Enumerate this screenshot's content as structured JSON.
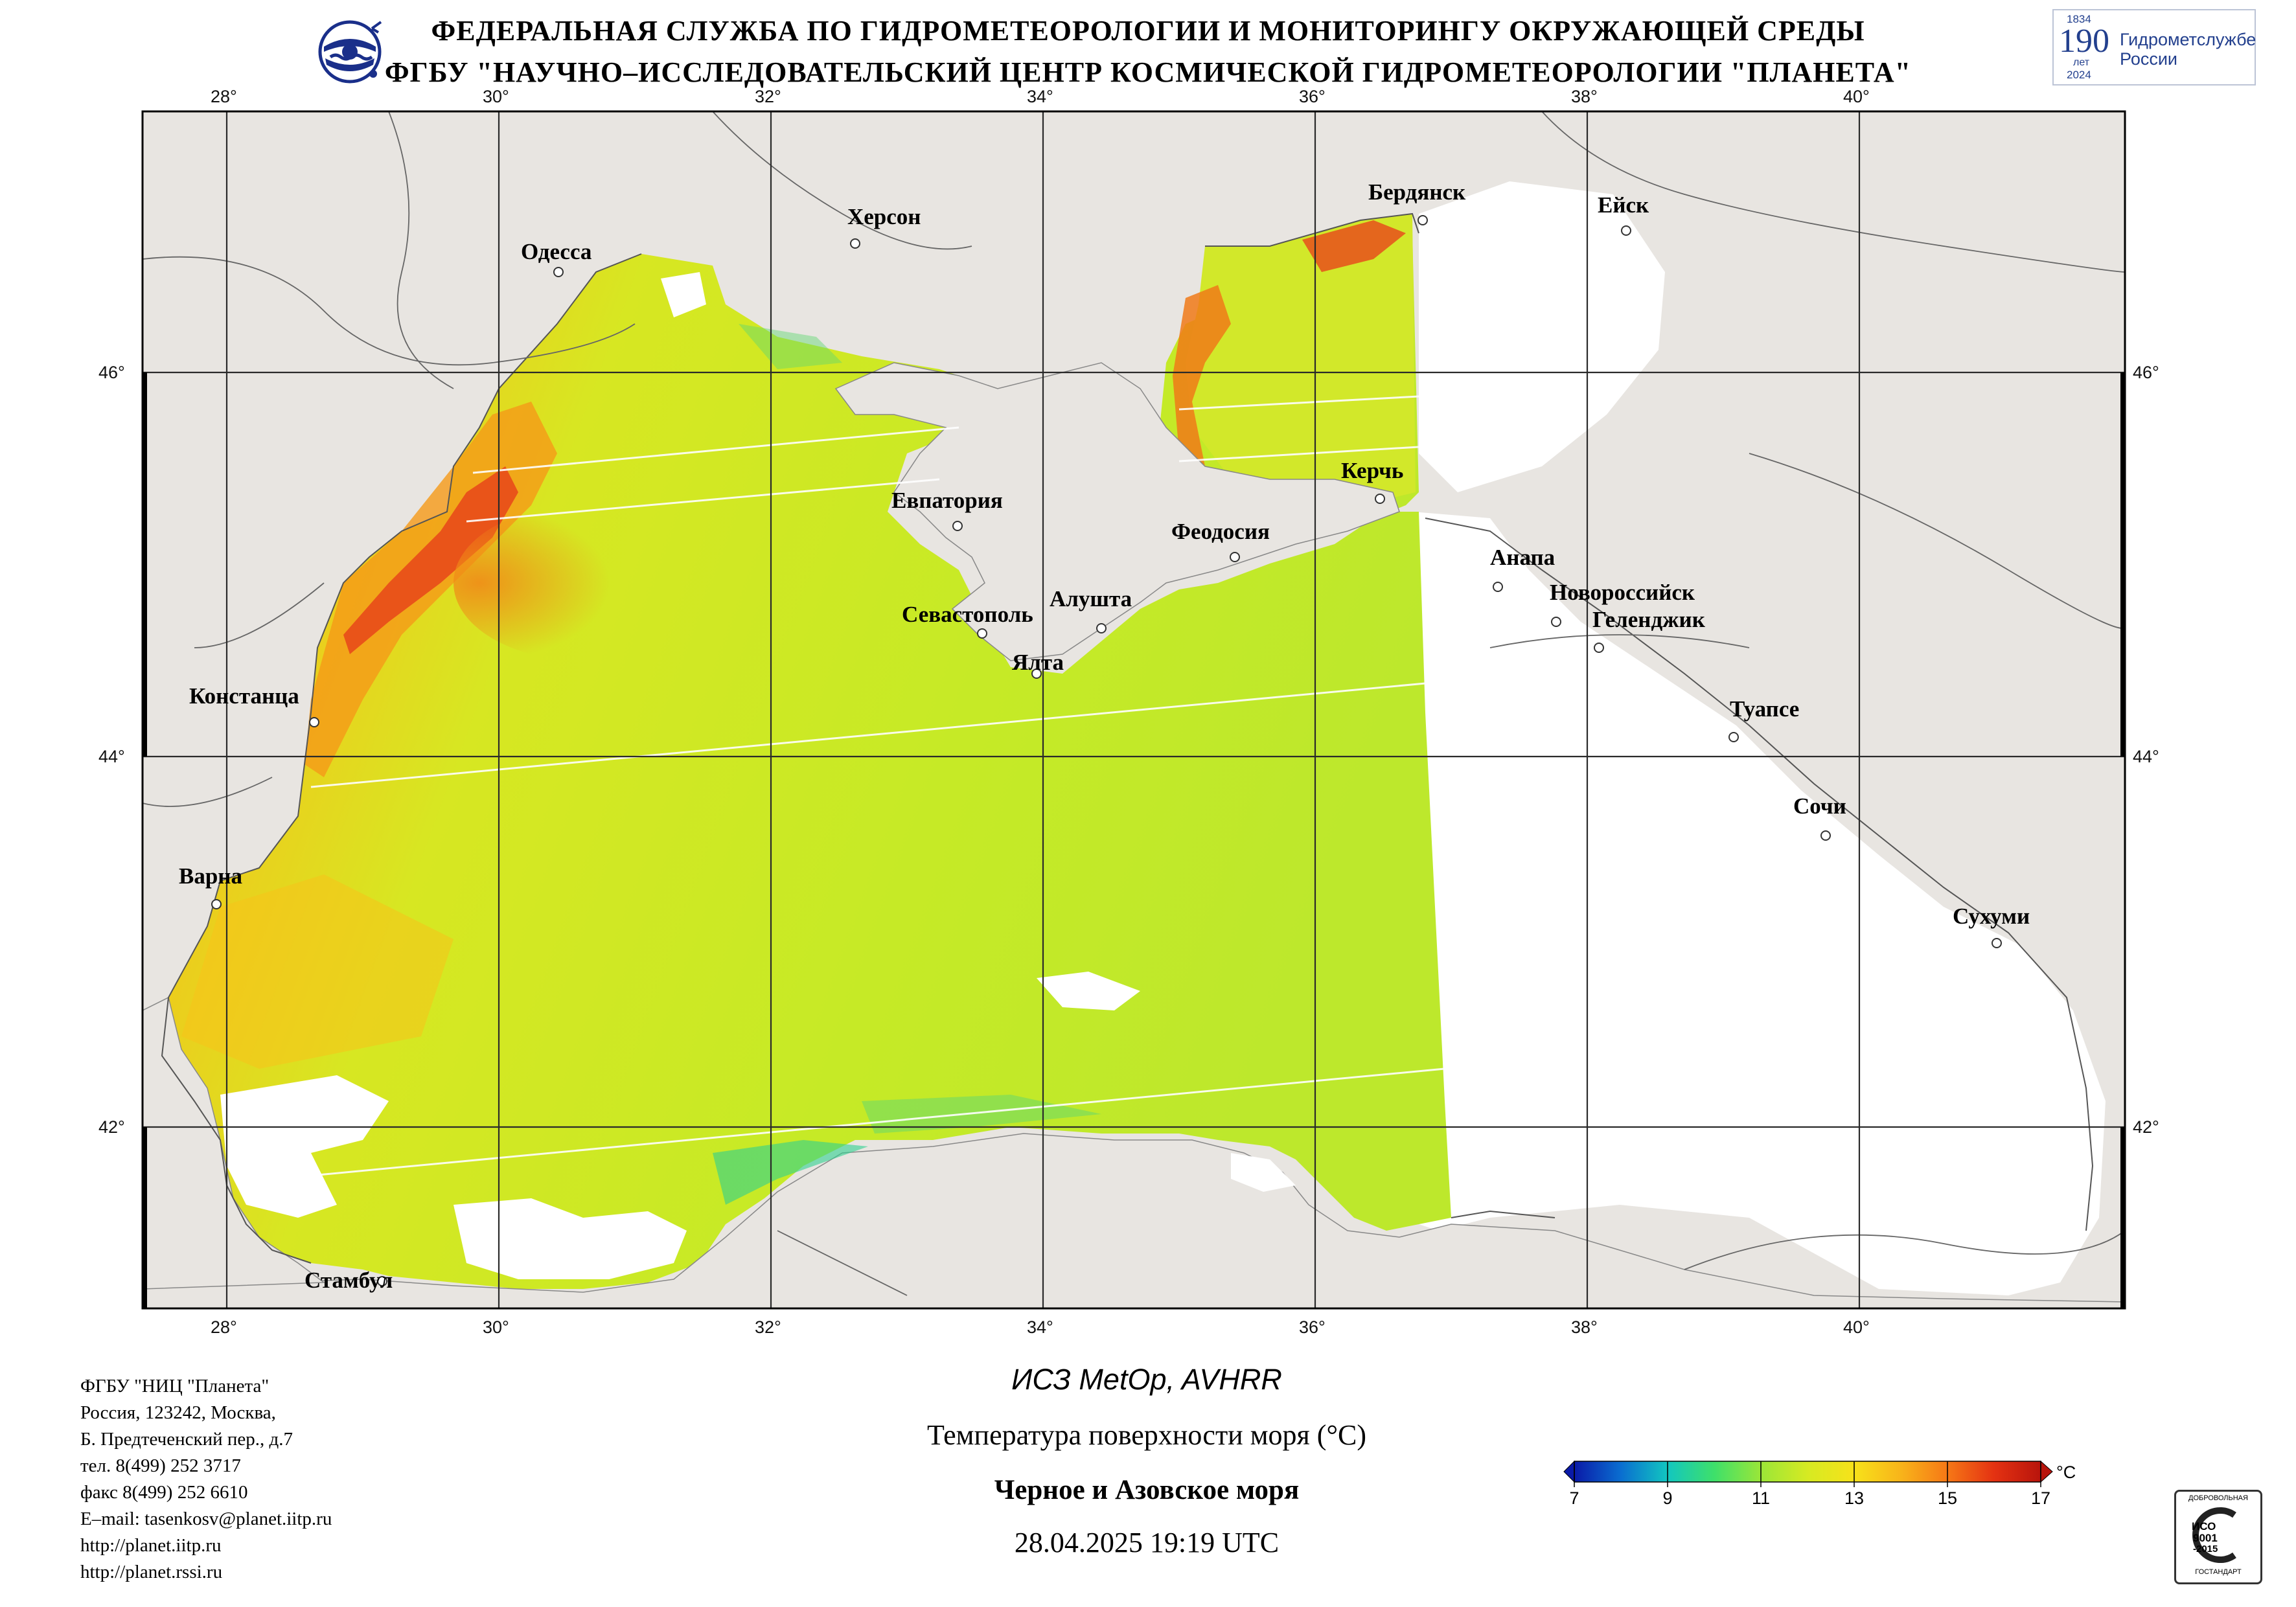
{
  "header": {
    "line1": "ФЕДЕРАЛЬНАЯ СЛУЖБА ПО ГИДРОМЕТЕОРОЛОГИИ И МОНИТОРИНГУ ОКРУЖАЮЩЕЙ СРЕДЫ",
    "line2": "ФГБУ \"НАУЧНО–ИССЛЕДОВАТЕЛЬСКИЙ ЦЕНТР КОСМИЧЕСКОЙ ГИДРОМЕТЕОРОЛОГИИ \"ПЛАНЕТА\"",
    "logo_left_icon": "roshydromet-emblem-icon",
    "logo_right": {
      "year_start": "1834",
      "number": "190",
      "unit": "лет",
      "year_end": "2024",
      "text_line1": "Гидрометслужбе",
      "text_line2": "России"
    }
  },
  "map": {
    "longitude_labels": [
      "28°",
      "30°",
      "32°",
      "34°",
      "36°",
      "38°",
      "40°"
    ],
    "latitude_labels": [
      "46°",
      "44°",
      "42°"
    ],
    "cities": [
      "Бердянск",
      "Ейск",
      "Херсон",
      "Одесса",
      "Керчь",
      "Евпатория",
      "Феодосия",
      "Анапа",
      "Новороссийск",
      "Геленджик",
      "Алушта",
      "Севастополь",
      "Ялта",
      "Констанца",
      "Туапсе",
      "Сочи",
      "Варна",
      "Сухуми",
      "Стамбул"
    ],
    "colors": {
      "land": "#e8e5e1",
      "no_data_sea": "#ffffff",
      "border": "#000000"
    }
  },
  "product": {
    "satellite": "ИСЗ MetOp, AVHRR",
    "parameter": "Температура поверхности моря (°C)",
    "region": "Черное и Азовское моря",
    "datetime": "28.04.2025 19:19 UTC"
  },
  "colorbar": {
    "ticks": [
      "7",
      "9",
      "11",
      "13",
      "15",
      "17"
    ],
    "unit": "°C",
    "min": 7,
    "max": 17,
    "colors": [
      "#0a1aa8",
      "#0a7fd0",
      "#1fd6a6",
      "#6ee64a",
      "#cdea22",
      "#f6e21a",
      "#f9b21a",
      "#f66a16",
      "#e42510",
      "#b8140c"
    ]
  },
  "contact": {
    "lines": [
      "ФГБУ \"НИЦ \"Планета\"",
      "Россия, 123242, Москва,",
      "Б. Предтеченский пер., д.7",
      "тел. 8(499) 252 3717",
      "факс 8(499) 252 6610",
      "E–mail: tasenkosv@planet.iitp.ru",
      "http://planet.iitp.ru",
      "http://planet.rssi.ru"
    ]
  },
  "certificate": {
    "top": "ДОБРОВОЛЬНАЯ",
    "iso": "ИСО",
    "number": "9001",
    "year": "-2015",
    "bottom": "ГОСТАНДАРТ"
  }
}
